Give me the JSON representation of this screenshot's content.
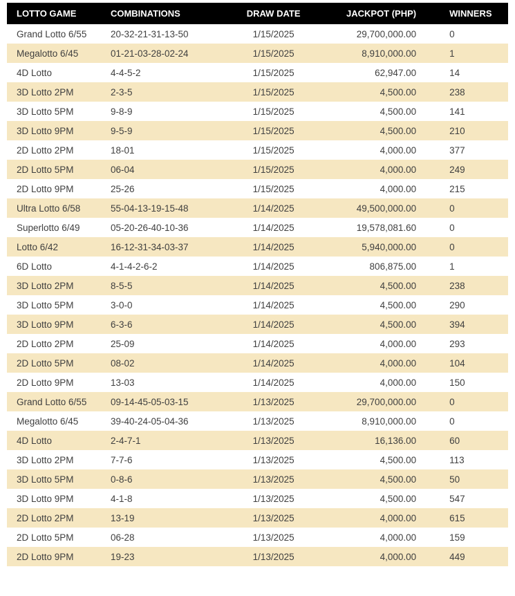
{
  "table": {
    "type": "table",
    "header_bg": "#000000",
    "header_text_color": "#ffffff",
    "row_alt_bg": "#f6e7c1",
    "row_bg": "#ffffff",
    "text_color": "#3f3f3f",
    "columns": [
      {
        "key": "game",
        "label": "LOTTO GAME",
        "align": "left",
        "width": 140
      },
      {
        "key": "combo",
        "label": "COMBINATIONS",
        "align": "left",
        "width": 175
      },
      {
        "key": "date",
        "label": "DRAW DATE",
        "align": "center",
        "width": 120
      },
      {
        "key": "jackpot",
        "label": "JACKPOT (PHP)",
        "align": "right",
        "width": 170
      },
      {
        "key": "winners",
        "label": "WINNERS",
        "align": "left",
        "width": 100
      }
    ],
    "rows": [
      {
        "game": "Grand Lotto 6/55",
        "combo": "20-32-21-31-13-50",
        "date": "1/15/2025",
        "jackpot": "29,700,000.00",
        "winners": "0"
      },
      {
        "game": "Megalotto 6/45",
        "combo": "01-21-03-28-02-24",
        "date": "1/15/2025",
        "jackpot": "8,910,000.00",
        "winners": "1"
      },
      {
        "game": "4D Lotto",
        "combo": "4-4-5-2",
        "date": "1/15/2025",
        "jackpot": "62,947.00",
        "winners": "14"
      },
      {
        "game": "3D Lotto 2PM",
        "combo": "2-3-5",
        "date": "1/15/2025",
        "jackpot": "4,500.00",
        "winners": "238"
      },
      {
        "game": "3D Lotto 5PM",
        "combo": "9-8-9",
        "date": "1/15/2025",
        "jackpot": "4,500.00",
        "winners": "141"
      },
      {
        "game": "3D Lotto 9PM",
        "combo": "9-5-9",
        "date": "1/15/2025",
        "jackpot": "4,500.00",
        "winners": "210"
      },
      {
        "game": "2D Lotto 2PM",
        "combo": "18-01",
        "date": "1/15/2025",
        "jackpot": "4,000.00",
        "winners": "377"
      },
      {
        "game": "2D Lotto 5PM",
        "combo": "06-04",
        "date": "1/15/2025",
        "jackpot": "4,000.00",
        "winners": "249"
      },
      {
        "game": "2D Lotto 9PM",
        "combo": "25-26",
        "date": "1/15/2025",
        "jackpot": "4,000.00",
        "winners": "215"
      },
      {
        "game": "Ultra Lotto 6/58",
        "combo": "55-04-13-19-15-48",
        "date": "1/14/2025",
        "jackpot": "49,500,000.00",
        "winners": "0"
      },
      {
        "game": "Superlotto 6/49",
        "combo": "05-20-26-40-10-36",
        "date": "1/14/2025",
        "jackpot": "19,578,081.60",
        "winners": "0"
      },
      {
        "game": "Lotto 6/42",
        "combo": "16-12-31-34-03-37",
        "date": "1/14/2025",
        "jackpot": "5,940,000.00",
        "winners": "0"
      },
      {
        "game": "6D Lotto",
        "combo": "4-1-4-2-6-2",
        "date": "1/14/2025",
        "jackpot": "806,875.00",
        "winners": "1"
      },
      {
        "game": "3D Lotto 2PM",
        "combo": "8-5-5",
        "date": "1/14/2025",
        "jackpot": "4,500.00",
        "winners": "238"
      },
      {
        "game": "3D Lotto 5PM",
        "combo": "3-0-0",
        "date": "1/14/2025",
        "jackpot": "4,500.00",
        "winners": "290"
      },
      {
        "game": "3D Lotto 9PM",
        "combo": "6-3-6",
        "date": "1/14/2025",
        "jackpot": "4,500.00",
        "winners": "394"
      },
      {
        "game": "2D Lotto 2PM",
        "combo": "25-09",
        "date": "1/14/2025",
        "jackpot": "4,000.00",
        "winners": "293"
      },
      {
        "game": "2D Lotto 5PM",
        "combo": "08-02",
        "date": "1/14/2025",
        "jackpot": "4,000.00",
        "winners": "104"
      },
      {
        "game": "2D Lotto 9PM",
        "combo": "13-03",
        "date": "1/14/2025",
        "jackpot": "4,000.00",
        "winners": "150"
      },
      {
        "game": "Grand Lotto 6/55",
        "combo": "09-14-45-05-03-15",
        "date": "1/13/2025",
        "jackpot": "29,700,000.00",
        "winners": "0"
      },
      {
        "game": "Megalotto 6/45",
        "combo": "39-40-24-05-04-36",
        "date": "1/13/2025",
        "jackpot": "8,910,000.00",
        "winners": "0"
      },
      {
        "game": "4D Lotto",
        "combo": "2-4-7-1",
        "date": "1/13/2025",
        "jackpot": "16,136.00",
        "winners": "60"
      },
      {
        "game": "3D Lotto 2PM",
        "combo": "7-7-6",
        "date": "1/13/2025",
        "jackpot": "4,500.00",
        "winners": "113"
      },
      {
        "game": "3D Lotto 5PM",
        "combo": "0-8-6",
        "date": "1/13/2025",
        "jackpot": "4,500.00",
        "winners": "50"
      },
      {
        "game": "3D Lotto 9PM",
        "combo": "4-1-8",
        "date": "1/13/2025",
        "jackpot": "4,500.00",
        "winners": "547"
      },
      {
        "game": "2D Lotto 2PM",
        "combo": "13-19",
        "date": "1/13/2025",
        "jackpot": "4,000.00",
        "winners": "615"
      },
      {
        "game": "2D Lotto 5PM",
        "combo": "06-28",
        "date": "1/13/2025",
        "jackpot": "4,000.00",
        "winners": "159"
      },
      {
        "game": "2D Lotto 9PM",
        "combo": "19-23",
        "date": "1/13/2025",
        "jackpot": "4,000.00",
        "winners": "449"
      }
    ]
  }
}
